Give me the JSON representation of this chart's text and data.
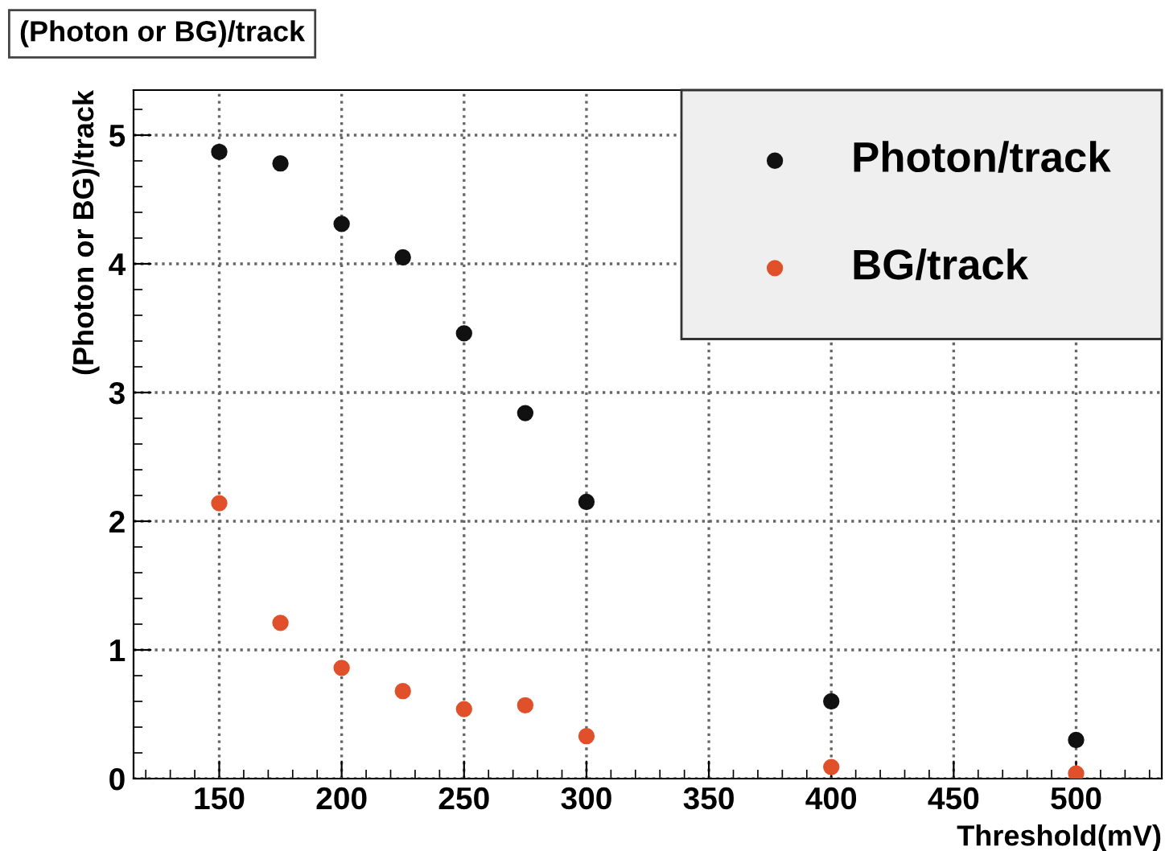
{
  "chart_data": {
    "type": "scatter",
    "title": "(Photon or BG)/track",
    "xlabel": "Threshold(mV)",
    "ylabel": "(Photon or BG)/track",
    "x": [
      150,
      175,
      200,
      225,
      250,
      275,
      300,
      400,
      500
    ],
    "series": [
      {
        "name": "Photon/track",
        "color": "#111111",
        "values": [
          4.87,
          4.78,
          4.31,
          4.05,
          3.46,
          2.84,
          2.15,
          0.6,
          0.3
        ]
      },
      {
        "name": "BG/track",
        "color": "#e0502a",
        "values": [
          2.14,
          1.21,
          0.86,
          0.68,
          0.54,
          0.57,
          0.33,
          0.09,
          0.04
        ]
      }
    ],
    "xlim": [
      115,
      535
    ],
    "xticks": [
      150,
      200,
      250,
      300,
      350,
      400,
      450,
      500
    ],
    "ylim": [
      0,
      5.35
    ],
    "yticks": [
      0,
      1,
      2,
      3,
      4,
      5
    ],
    "grid": true,
    "legend": "top right",
    "marker": "circle"
  }
}
